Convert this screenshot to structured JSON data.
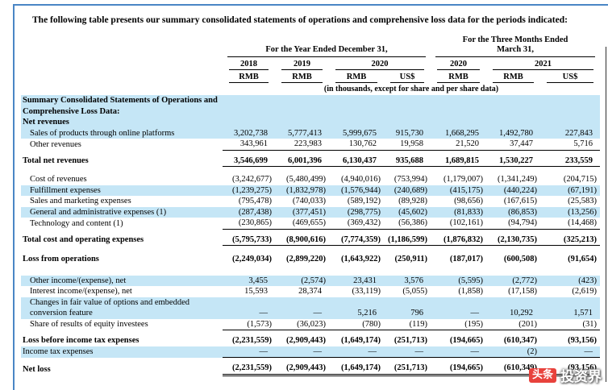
{
  "page": {
    "intro": "The following table presents our summary consolidated statements of operations and comprehensive loss data for the periods indicated:"
  },
  "header": {
    "year_group": "For the Year Ended December 31,",
    "quarter_group_line1": "For the Three Months Ended",
    "quarter_group_line2": "March 31,",
    "years": [
      "2018",
      "2019",
      "2020"
    ],
    "quarters": [
      "2020",
      "2021"
    ],
    "currencies": [
      "RMB",
      "RMB",
      "RMB",
      "US$",
      "RMB",
      "RMB",
      "US$"
    ],
    "units_note": "(in thousands, except for share and per share data)"
  },
  "table": {
    "rows": [
      {
        "type": "section",
        "label": "Summary Consolidated Statements of Operations and Comprehensive Loss Data:",
        "bold": true,
        "highlight": true,
        "wrap": true
      },
      {
        "type": "section",
        "label": "Net revenues",
        "bold": true,
        "highlight": true
      },
      {
        "type": "data",
        "label": "Sales of products through online platforms",
        "indent": true,
        "highlight": true,
        "values": [
          "3,202,738",
          "5,777,413",
          "5,999,675",
          "915,730",
          "1,668,295",
          "1,492,780",
          "227,843"
        ]
      },
      {
        "type": "data",
        "label": "Other revenues",
        "indent": true,
        "values": [
          "343,961",
          "223,983",
          "130,762",
          "19,958",
          "21,520",
          "37,447",
          "5,716"
        ],
        "rule_below": true
      },
      {
        "type": "spacer",
        "h": 6
      },
      {
        "type": "data",
        "label": "Total net revenues",
        "bold": true,
        "values": [
          "3,546,699",
          "6,001,396",
          "6,130,437",
          "935,688",
          "1,689,815",
          "1,530,227",
          "233,559"
        ],
        "rule_below": true
      },
      {
        "type": "spacer",
        "h": 9
      },
      {
        "type": "data",
        "label": "Cost of revenues",
        "indent": true,
        "values": [
          "(3,242,677)",
          "(5,480,499)",
          "(4,940,016)",
          "(753,994)",
          "(1,179,007)",
          "(1,341,249)",
          "(204,715)"
        ]
      },
      {
        "type": "data",
        "label": "Fulfillment expenses",
        "indent": true,
        "highlight": true,
        "values": [
          "(1,239,275)",
          "(1,832,978)",
          "(1,576,944)",
          "(240,689)",
          "(415,175)",
          "(440,224)",
          "(67,191)"
        ]
      },
      {
        "type": "data",
        "label": "Sales and marketing expenses",
        "indent": true,
        "values": [
          "(795,478)",
          "(740,033)",
          "(589,192)",
          "(89,928)",
          "(98,656)",
          "(167,615)",
          "(25,583)"
        ]
      },
      {
        "type": "data",
        "label": "General and administrative expenses (1)",
        "indent": true,
        "highlight": true,
        "values": [
          "(287,438)",
          "(377,451)",
          "(298,775)",
          "(45,602)",
          "(81,833)",
          "(86,853)",
          "(13,256)"
        ]
      },
      {
        "type": "data",
        "label": "Technology and content (1)",
        "indent": true,
        "values": [
          "(230,865)",
          "(469,655)",
          "(369,432)",
          "(56,386)",
          "(102,161)",
          "(94,794)",
          "(14,468)"
        ],
        "rule_below": true
      },
      {
        "type": "spacer",
        "h": 6
      },
      {
        "type": "data",
        "label": "Total cost and operating expenses",
        "bold": true,
        "values": [
          "(5,795,733)",
          "(8,900,616)",
          "(7,774,359)",
          "(1,186,599)",
          "(1,876,832)",
          "(2,130,735)",
          "(325,213)"
        ],
        "rule_below": true
      },
      {
        "type": "spacer",
        "h": 10
      },
      {
        "type": "data",
        "label": "Loss from operations",
        "bold": true,
        "values": [
          "(2,249,034)",
          "(2,899,220)",
          "(1,643,922)",
          "(250,911)",
          "(187,017)",
          "(600,508)",
          "(91,654)"
        ]
      },
      {
        "type": "spacer",
        "h": 13
      },
      {
        "type": "data",
        "label": "Other income/(expense), net",
        "indent": true,
        "highlight": true,
        "values": [
          "3,455",
          "(2,574)",
          "23,431",
          "3,576",
          "(5,595)",
          "(2,772)",
          "(423)"
        ]
      },
      {
        "type": "data",
        "label": "Interest income/(expense), net",
        "indent": true,
        "values": [
          "15,593",
          "28,374",
          "(33,119)",
          "(5,055)",
          "(1,858)",
          "(17,158)",
          "(2,619)"
        ]
      },
      {
        "type": "data",
        "label": "Changes in fair value of options and embedded conversion feature",
        "indent": true,
        "highlight": true,
        "values": [
          "—",
          "—",
          "5,216",
          "796",
          "—",
          "10,292",
          "1,571"
        ]
      },
      {
        "type": "data",
        "label": "Share of results of equity investees",
        "indent": true,
        "values": [
          "(1,573)",
          "(36,023)",
          "(780)",
          "(119)",
          "(195)",
          "(201)",
          "(31)"
        ],
        "rule_below": true
      },
      {
        "type": "spacer",
        "h": 6
      },
      {
        "type": "data",
        "label": "Loss before income tax expenses",
        "bold": true,
        "values": [
          "(2,231,559)",
          "(2,909,443)",
          "(1,649,174)",
          "(251,713)",
          "(194,665)",
          "(610,347)",
          "(93,156)"
        ]
      },
      {
        "type": "data",
        "label": "Income tax expenses",
        "highlight": true,
        "values": [
          "—",
          "—",
          "—",
          "—",
          "—",
          "(2)",
          "—"
        ],
        "rule_below": true
      },
      {
        "type": "spacer",
        "h": 6
      },
      {
        "type": "data",
        "label": "Net loss",
        "bold": true,
        "values": [
          "(2,231,559)",
          "(2,909,443)",
          "(1,649,174)",
          "(251,713)",
          "(194,665)",
          "(610,349)",
          "(93,156)"
        ],
        "double_rule": true
      }
    ]
  },
  "watermark": {
    "badge": "头条",
    "text": "投资界"
  },
  "colors": {
    "row_highlight": "#c5e6f6",
    "accent_line_blue": "#4a86c5",
    "watermark_red": "#e8423c",
    "rule_black": "#000000"
  }
}
